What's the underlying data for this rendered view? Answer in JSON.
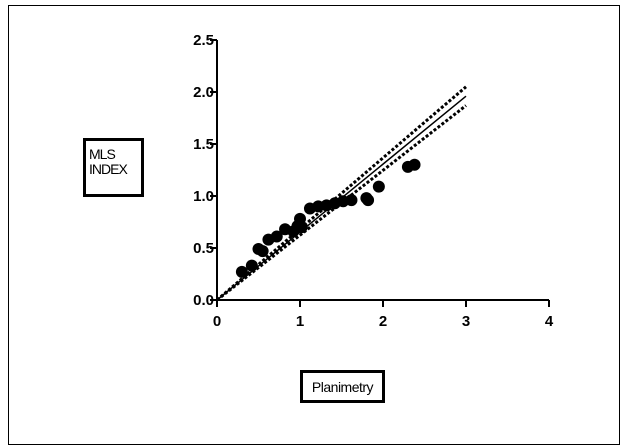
{
  "chart_data": {
    "type": "scatter",
    "xlabel": "Planimetry",
    "ylabel_lines": [
      "MLS",
      "INDEX"
    ],
    "xlim": [
      0,
      4
    ],
    "ylim": [
      0,
      2.5
    ],
    "x_ticks": [
      "0",
      "1",
      "2",
      "3",
      "4"
    ],
    "y_ticks": [
      "0.0",
      "0.5",
      "1.0",
      "1.5",
      "2.0",
      "2.5"
    ],
    "grid": false,
    "points": [
      {
        "x": 0.3,
        "y": 0.27
      },
      {
        "x": 0.42,
        "y": 0.33
      },
      {
        "x": 0.5,
        "y": 0.49
      },
      {
        "x": 0.55,
        "y": 0.47
      },
      {
        "x": 0.62,
        "y": 0.58
      },
      {
        "x": 0.72,
        "y": 0.61
      },
      {
        "x": 0.82,
        "y": 0.68
      },
      {
        "x": 0.92,
        "y": 0.66
      },
      {
        "x": 0.97,
        "y": 0.71
      },
      {
        "x": 1.0,
        "y": 0.78
      },
      {
        "x": 1.02,
        "y": 0.7
      },
      {
        "x": 1.12,
        "y": 0.88
      },
      {
        "x": 1.22,
        "y": 0.9
      },
      {
        "x": 1.32,
        "y": 0.91
      },
      {
        "x": 1.42,
        "y": 0.93
      },
      {
        "x": 1.52,
        "y": 0.95
      },
      {
        "x": 1.62,
        "y": 0.96
      },
      {
        "x": 1.8,
        "y": 0.98
      },
      {
        "x": 1.82,
        "y": 0.96
      },
      {
        "x": 1.95,
        "y": 1.09
      },
      {
        "x": 2.3,
        "y": 1.28
      },
      {
        "x": 2.38,
        "y": 1.3
      }
    ],
    "regression": {
      "x": [
        0,
        3
      ],
      "y": [
        0,
        1.96
      ]
    },
    "confidence_band": {
      "upper": {
        "x": [
          0,
          3
        ],
        "y": [
          0,
          2.05
        ]
      },
      "lower": {
        "x": [
          0,
          3
        ],
        "y": [
          0,
          1.87
        ]
      }
    },
    "colors": {
      "points": "#000000",
      "lines": "#000000"
    }
  }
}
